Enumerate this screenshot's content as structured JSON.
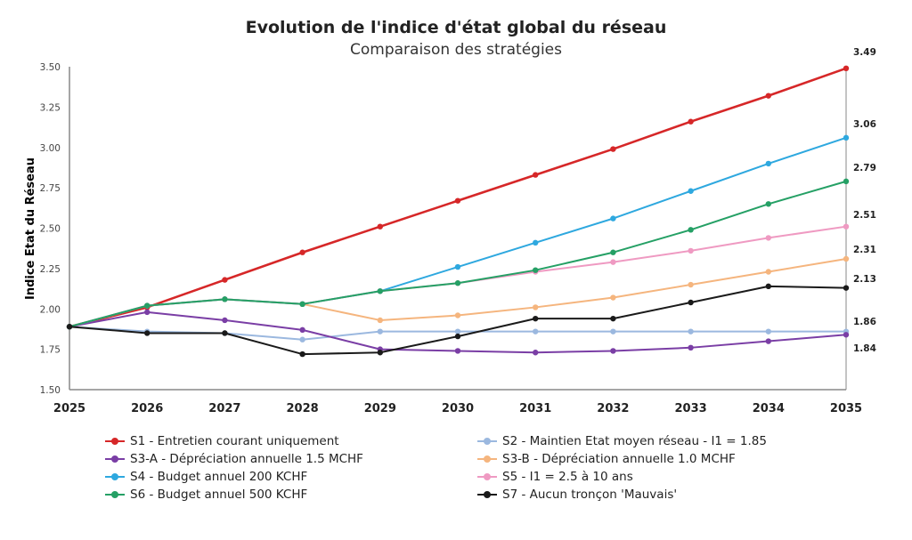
{
  "chart_data": {
    "type": "line",
    "title": "Evolution de l'indice d'état global du réseau",
    "subtitle": "Comparaison des stratégies",
    "ylabel": "Indice Etat du Réseau",
    "xlabel": "",
    "x": [
      "2025",
      "2026",
      "2027",
      "2028",
      "2029",
      "2030",
      "2031",
      "2032",
      "2033",
      "2034",
      "2035"
    ],
    "ylim": [
      1.5,
      3.5
    ],
    "yticks": [
      "1.50",
      "1.75",
      "2.00",
      "2.25",
      "2.50",
      "2.75",
      "3.00",
      "3.25",
      "3.50"
    ],
    "grid": false,
    "legend_position": "bottom",
    "series": [
      {
        "name": "S1 - Entretien courant uniquement",
        "color": "#d62728",
        "values": [
          1.89,
          2.01,
          2.18,
          2.35,
          2.51,
          2.67,
          2.83,
          2.99,
          3.16,
          3.32,
          3.49
        ],
        "end_label": "3.49"
      },
      {
        "name": "S2 - Maintien Etat moyen réseau  - I1 = 1.85",
        "color": "#9bb8df",
        "values": [
          1.89,
          1.86,
          1.85,
          1.81,
          1.86,
          1.86,
          1.86,
          1.86,
          1.86,
          1.86,
          1.86
        ],
        "end_label": ""
      },
      {
        "name": "S3-A - Dépréciation annuelle 1.5 MCHF",
        "color": "#7a3ea5",
        "values": [
          1.89,
          1.98,
          1.93,
          1.87,
          1.75,
          1.74,
          1.73,
          1.74,
          1.76,
          1.8,
          1.84
        ],
        "end_label": "1.84"
      },
      {
        "name": "S3-B - Dépréciation annuelle 1.0 MCHF",
        "color": "#f5b57e",
        "values": [
          1.89,
          2.02,
          2.06,
          2.03,
          1.93,
          1.96,
          2.01,
          2.07,
          2.15,
          2.23,
          2.31
        ],
        "end_label": "2.31"
      },
      {
        "name": "S4 - Budget annuel 200 KCHF",
        "color": "#2ea8df",
        "values": [
          1.89,
          2.02,
          2.06,
          2.03,
          2.11,
          2.26,
          2.41,
          2.56,
          2.73,
          2.9,
          3.06
        ],
        "end_label": "3.06"
      },
      {
        "name": "S5 - I1 = 2.5 à 10 ans",
        "color": "#ef9ac2",
        "values": [
          1.89,
          2.02,
          2.06,
          2.03,
          2.11,
          2.16,
          2.23,
          2.29,
          2.36,
          2.44,
          2.51
        ],
        "end_label": "2.51"
      },
      {
        "name": "S6 - Budget annuel 500 KCHF",
        "color": "#25a065",
        "values": [
          1.89,
          2.02,
          2.06,
          2.03,
          2.11,
          2.16,
          2.24,
          2.35,
          2.49,
          2.65,
          2.79
        ],
        "end_label": "2.79"
      },
      {
        "name": "S7 - Aucun tronçon 'Mauvais'",
        "color": "#1a1a1a",
        "values": [
          1.89,
          1.85,
          1.85,
          1.72,
          1.73,
          1.83,
          1.94,
          1.94,
          2.04,
          2.14,
          2.13
        ],
        "end_label": "2.13"
      }
    ],
    "extra_labels": [
      "1.86"
    ]
  }
}
